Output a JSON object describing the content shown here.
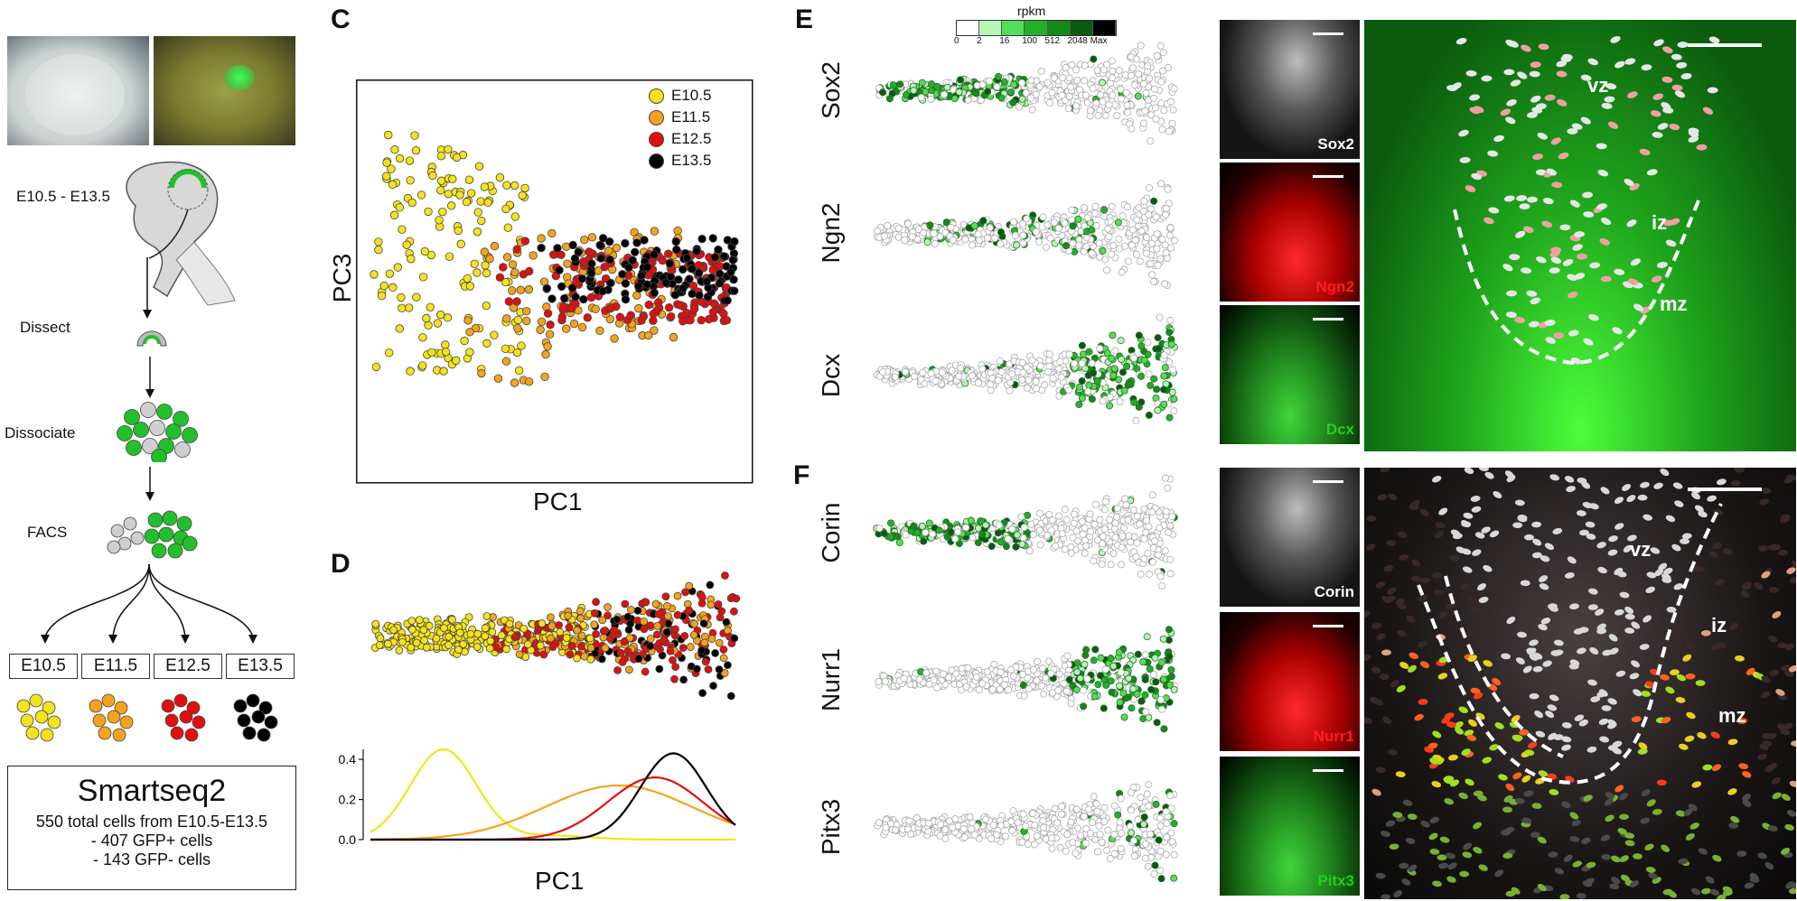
{
  "panel_letters": {
    "c": "C",
    "d": "D",
    "e": "E",
    "f": "F"
  },
  "workflow": {
    "stage_range": "E10.5 - E13.5",
    "steps": [
      "Dissect",
      "Dissociate",
      "FACS"
    ],
    "stages": [
      "E10.5",
      "E11.5",
      "E12.5",
      "E13.5"
    ],
    "smartseq_title": "Smartseq2",
    "smartseq_lines": [
      "550 total cells from E10.5-E13.5",
      "- 407 GFP+ cells",
      "- 143 GFP- cells"
    ]
  },
  "colors": {
    "E10.5": "#f5e31a",
    "E11.5": "#f5a31a",
    "E12.5": "#e01010",
    "E13.5": "#000000",
    "gfp": "#22c02a",
    "gray": "#cfcfcf"
  },
  "chart_data": [
    {
      "type": "scatter",
      "panel": "C",
      "xlabel": "PC1",
      "ylabel": "PC3",
      "legend_position": "top-right",
      "series": [
        {
          "name": "E10.5",
          "x_range": [
            0.0,
            0.42
          ],
          "y_range": [
            -0.6,
            1.0
          ]
        },
        {
          "name": "E11.5",
          "x_range": [
            0.25,
            0.85
          ],
          "y_range": [
            -0.7,
            0.4
          ]
        },
        {
          "name": "E12.5",
          "x_range": [
            0.3,
            1.0
          ],
          "y_range": [
            -0.5,
            0.45
          ]
        },
        {
          "name": "E13.5",
          "x_range": [
            0.45,
            1.0
          ],
          "y_range": [
            -0.2,
            0.45
          ]
        }
      ]
    },
    {
      "type": "line",
      "panel": "D",
      "xlabel": "PC1",
      "ylabel": "",
      "ylim": [
        0,
        0.45
      ],
      "yticks": [
        "0.0",
        "0.2",
        "0.4"
      ],
      "series": [
        {
          "name": "E10.5",
          "peak_x": 0.2,
          "peak_y": 0.45
        },
        {
          "name": "E11.5",
          "peak_x": 0.68,
          "peak_y": 0.27
        },
        {
          "name": "E12.5",
          "peak_x": 0.78,
          "peak_y": 0.31
        },
        {
          "name": "E13.5",
          "peak_x": 0.83,
          "peak_y": 0.43
        }
      ]
    }
  ],
  "rpkm_legend": {
    "title": "rpkm",
    "ticks": [
      "0",
      "2",
      "16",
      "100",
      "512",
      "2048",
      "Max"
    ],
    "colors": [
      "#ffffff",
      "#b6f5b6",
      "#55dd55",
      "#22b02a",
      "#128a1a",
      "#0a5a10",
      "#000000"
    ]
  },
  "genes": {
    "E": [
      {
        "name": "Sox2",
        "profile": "early"
      },
      {
        "name": "Ngn2",
        "profile": "mid"
      },
      {
        "name": "Dcx",
        "profile": "late"
      }
    ],
    "F": [
      {
        "name": "Corin",
        "profile": "early"
      },
      {
        "name": "Nurr1",
        "profile": "late"
      },
      {
        "name": "Pitx3",
        "profile": "latesparse"
      }
    ]
  },
  "micrographs": {
    "E": [
      {
        "label": "Sox2",
        "color": "#ffffff"
      },
      {
        "label": "Ngn2",
        "color": "#ff2020"
      },
      {
        "label": "Dcx",
        "color": "#22d022"
      }
    ],
    "F": [
      {
        "label": "Corin",
        "color": "#ffffff"
      },
      {
        "label": "Nurr1",
        "color": "#ff2020"
      },
      {
        "label": "Pitx3",
        "color": "#22d022"
      }
    ]
  },
  "zone_labels": {
    "vz": "vz",
    "iz": "iz",
    "mz": "mz"
  }
}
